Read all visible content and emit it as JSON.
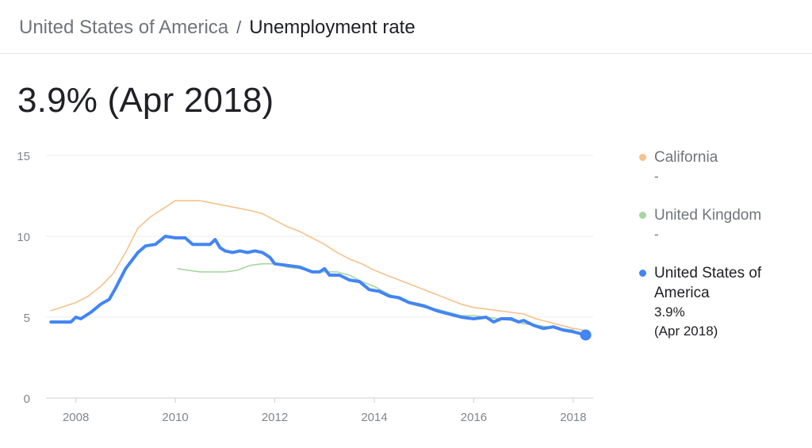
{
  "breadcrumb": {
    "parent": "United States of America",
    "separator": "/",
    "current": "Unemployment rate"
  },
  "headline": "3.9% (Apr 2018)",
  "chart_data": {
    "type": "line",
    "title": "",
    "xlabel": "",
    "ylabel": "",
    "xlim": [
      2007.4,
      2018.4
    ],
    "ylim": [
      0,
      15
    ],
    "x_ticks": [
      2008,
      2010,
      2012,
      2014,
      2016,
      2018
    ],
    "x_tick_labels": [
      "2008",
      "2010",
      "2012",
      "2014",
      "2016",
      "2018"
    ],
    "y_ticks": [
      0,
      5,
      10,
      15
    ],
    "y_tick_labels": [
      "0",
      "5",
      "10",
      "15"
    ],
    "grid": true,
    "legend_position": "right",
    "series": [
      {
        "name": "California",
        "color": "#f6c28b",
        "stroke_width": 1.6,
        "legend_value": "-",
        "points": [
          [
            2007.5,
            5.4
          ],
          [
            2007.75,
            5.65
          ],
          [
            2008.0,
            5.9
          ],
          [
            2008.25,
            6.3
          ],
          [
            2008.5,
            6.9
          ],
          [
            2008.75,
            7.7
          ],
          [
            2009.0,
            9.0
          ],
          [
            2009.25,
            10.5
          ],
          [
            2009.5,
            11.2
          ],
          [
            2009.75,
            11.7
          ],
          [
            2010.0,
            12.2
          ],
          [
            2010.25,
            12.2
          ],
          [
            2010.5,
            12.2
          ],
          [
            2010.75,
            12.05
          ],
          [
            2011.0,
            11.9
          ],
          [
            2011.25,
            11.75
          ],
          [
            2011.5,
            11.6
          ],
          [
            2011.75,
            11.4
          ],
          [
            2012.0,
            11.0
          ],
          [
            2012.25,
            10.6
          ],
          [
            2012.5,
            10.3
          ],
          [
            2012.75,
            9.9
          ],
          [
            2013.0,
            9.5
          ],
          [
            2013.25,
            9.0
          ],
          [
            2013.5,
            8.6
          ],
          [
            2013.75,
            8.3
          ],
          [
            2014.0,
            7.9
          ],
          [
            2014.25,
            7.6
          ],
          [
            2014.5,
            7.3
          ],
          [
            2014.75,
            7.0
          ],
          [
            2015.0,
            6.7
          ],
          [
            2015.25,
            6.4
          ],
          [
            2015.5,
            6.1
          ],
          [
            2015.75,
            5.8
          ],
          [
            2016.0,
            5.6
          ],
          [
            2016.25,
            5.5
          ],
          [
            2016.5,
            5.4
          ],
          [
            2016.75,
            5.3
          ],
          [
            2017.0,
            5.2
          ],
          [
            2017.25,
            4.9
          ],
          [
            2017.5,
            4.7
          ],
          [
            2017.75,
            4.5
          ],
          [
            2018.0,
            4.3
          ],
          [
            2018.2,
            4.2
          ]
        ]
      },
      {
        "name": "United Kingdom",
        "color": "#a8d5a2",
        "stroke_width": 1.6,
        "legend_value": "-",
        "points": [
          [
            2010.05,
            8.0
          ],
          [
            2010.25,
            7.9
          ],
          [
            2010.5,
            7.8
          ],
          [
            2010.75,
            7.8
          ],
          [
            2011.0,
            7.8
          ],
          [
            2011.25,
            7.9
          ],
          [
            2011.5,
            8.2
          ],
          [
            2011.75,
            8.3
          ],
          [
            2012.0,
            8.3
          ],
          [
            2012.25,
            8.1
          ],
          [
            2012.5,
            8.0
          ],
          [
            2012.75,
            7.8
          ],
          [
            2013.0,
            7.8
          ],
          [
            2013.25,
            7.8
          ],
          [
            2013.5,
            7.6
          ],
          [
            2013.75,
            7.2
          ],
          [
            2014.0,
            6.9
          ],
          [
            2014.25,
            6.5
          ],
          [
            2014.5,
            6.1
          ],
          [
            2014.75,
            5.8
          ],
          [
            2015.0,
            5.6
          ],
          [
            2015.25,
            5.5
          ],
          [
            2015.5,
            5.3
          ],
          [
            2015.75,
            5.1
          ],
          [
            2016.0,
            5.1
          ],
          [
            2016.25,
            5.0
          ],
          [
            2016.5,
            4.9
          ],
          [
            2016.75,
            4.8
          ],
          [
            2017.0,
            4.6
          ],
          [
            2017.25,
            4.5
          ],
          [
            2017.5,
            4.4
          ],
          [
            2017.75,
            4.3
          ],
          [
            2018.0,
            4.2
          ]
        ]
      },
      {
        "name": "United States of America",
        "color": "#4285f4",
        "stroke_width": 4,
        "legend_value": "3.9%",
        "legend_date": "(Apr 2018)",
        "active": true,
        "points": [
          [
            2007.5,
            4.7
          ],
          [
            2007.9,
            4.7
          ],
          [
            2008.0,
            5.0
          ],
          [
            2008.1,
            4.9
          ],
          [
            2008.3,
            5.3
          ],
          [
            2008.5,
            5.8
          ],
          [
            2008.67,
            6.1
          ],
          [
            2008.8,
            6.8
          ],
          [
            2009.0,
            8.0
          ],
          [
            2009.25,
            9.0
          ],
          [
            2009.4,
            9.4
          ],
          [
            2009.6,
            9.5
          ],
          [
            2009.8,
            10.0
          ],
          [
            2010.0,
            9.9
          ],
          [
            2010.2,
            9.9
          ],
          [
            2010.35,
            9.5
          ],
          [
            2010.5,
            9.5
          ],
          [
            2010.6,
            9.5
          ],
          [
            2010.7,
            9.5
          ],
          [
            2010.8,
            9.8
          ],
          [
            2010.9,
            9.3
          ],
          [
            2011.0,
            9.1
          ],
          [
            2011.15,
            9.0
          ],
          [
            2011.3,
            9.1
          ],
          [
            2011.45,
            9.0
          ],
          [
            2011.6,
            9.1
          ],
          [
            2011.75,
            9.0
          ],
          [
            2011.9,
            8.7
          ],
          [
            2012.0,
            8.3
          ],
          [
            2012.25,
            8.2
          ],
          [
            2012.5,
            8.1
          ],
          [
            2012.75,
            7.8
          ],
          [
            2012.9,
            7.8
          ],
          [
            2013.0,
            8.0
          ],
          [
            2013.1,
            7.6
          ],
          [
            2013.3,
            7.6
          ],
          [
            2013.5,
            7.3
          ],
          [
            2013.7,
            7.2
          ],
          [
            2013.9,
            6.7
          ],
          [
            2014.1,
            6.6
          ],
          [
            2014.3,
            6.3
          ],
          [
            2014.5,
            6.2
          ],
          [
            2014.7,
            5.9
          ],
          [
            2015.0,
            5.7
          ],
          [
            2015.25,
            5.4
          ],
          [
            2015.5,
            5.2
          ],
          [
            2015.75,
            5.0
          ],
          [
            2016.0,
            4.9
          ],
          [
            2016.25,
            5.0
          ],
          [
            2016.4,
            4.7
          ],
          [
            2016.55,
            4.9
          ],
          [
            2016.75,
            4.9
          ],
          [
            2016.9,
            4.7
          ],
          [
            2017.0,
            4.8
          ],
          [
            2017.2,
            4.5
          ],
          [
            2017.4,
            4.3
          ],
          [
            2017.6,
            4.4
          ],
          [
            2017.8,
            4.2
          ],
          [
            2018.0,
            4.1
          ],
          [
            2018.25,
            3.9
          ]
        ]
      }
    ]
  }
}
